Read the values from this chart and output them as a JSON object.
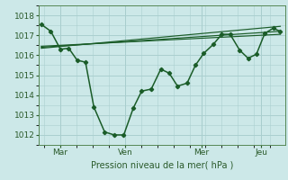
{
  "xlabel": "Pression niveau de la mer( hPa )",
  "bg_color": "#cce8e8",
  "grid_color": "#aacfcf",
  "line_color": "#1a5c28",
  "ylim": [
    1011.5,
    1018.5
  ],
  "yticks": [
    1012,
    1013,
    1014,
    1015,
    1016,
    1017,
    1018
  ],
  "xtick_labels": [
    "Mar",
    "Ven",
    "Mer",
    "Jeu"
  ],
  "xtick_positions": [
    0.08,
    0.35,
    0.67,
    0.92
  ],
  "main_x": [
    0.0,
    0.04,
    0.08,
    0.115,
    0.15,
    0.185,
    0.22,
    0.265,
    0.305,
    0.345,
    0.385,
    0.42,
    0.46,
    0.5,
    0.535,
    0.57,
    0.61,
    0.645,
    0.68,
    0.72,
    0.755,
    0.79,
    0.83,
    0.865,
    0.9,
    0.935,
    0.97,
    1.0
  ],
  "main_y": [
    1017.55,
    1017.2,
    1016.3,
    1016.35,
    1015.75,
    1015.65,
    1013.4,
    1012.15,
    1012.0,
    1012.0,
    1013.35,
    1014.2,
    1014.3,
    1015.3,
    1015.1,
    1014.45,
    1014.6,
    1015.5,
    1016.1,
    1016.55,
    1017.05,
    1017.05,
    1016.25,
    1015.85,
    1016.05,
    1017.1,
    1017.35,
    1017.2
  ],
  "trend1_x": [
    0.0,
    1.0
  ],
  "trend1_y": [
    1016.45,
    1017.05
  ],
  "trend2_x": [
    0.0,
    1.0
  ],
  "trend2_y": [
    1016.4,
    1017.2
  ],
  "trend3_x": [
    0.0,
    1.0
  ],
  "trend3_y": [
    1016.35,
    1017.45
  ],
  "vline_positions": [
    0.08,
    0.35,
    0.67,
    0.92
  ],
  "xlim": [
    -0.01,
    1.02
  ]
}
